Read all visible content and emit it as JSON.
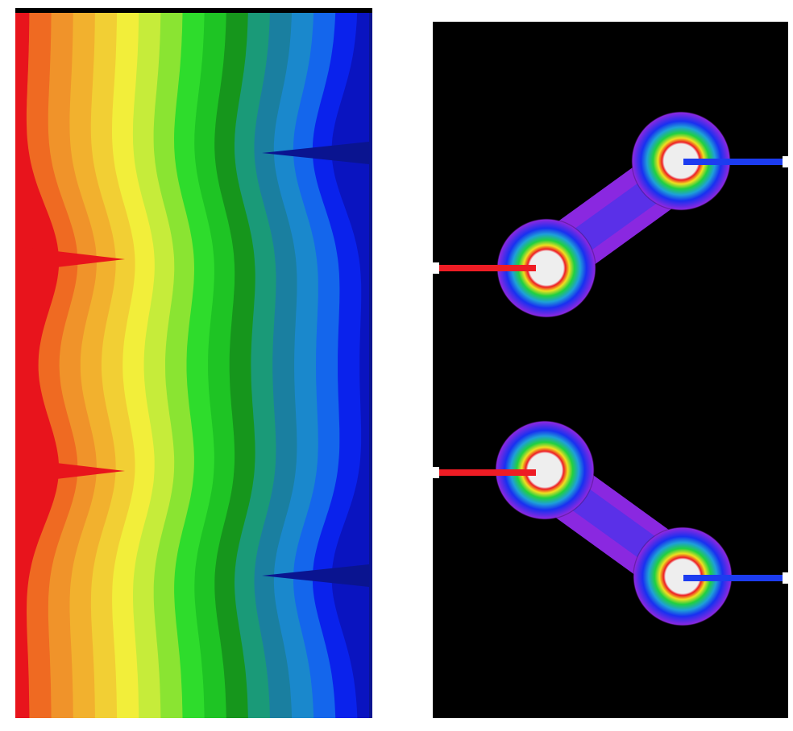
{
  "left_panel": {
    "band_colors": [
      "#e8141c",
      "#ef6a22",
      "#f0932a",
      "#f2b12e",
      "#f2cf34",
      "#f2ee3a",
      "#c6ec3a",
      "#8ae432",
      "#2edc2c",
      "#1ec424",
      "#16961c",
      "#1a9a78",
      "#1a7fa0",
      "#1a88cc",
      "#1466ec",
      "#0a22ec",
      "#0a14c0"
    ],
    "frame_color": "#000000"
  },
  "right_panel": {
    "background": "#000000",
    "electrode_color": "#eeeeee",
    "source_lead_color": "#ee1c24",
    "sink_lead_color": "#1c3cf0",
    "gradient": [
      "#eeeeee",
      "#ee1c24",
      "#f0e020",
      "#20d040",
      "#1ea0d8",
      "#1830f0",
      "#8a28e0"
    ]
  }
}
